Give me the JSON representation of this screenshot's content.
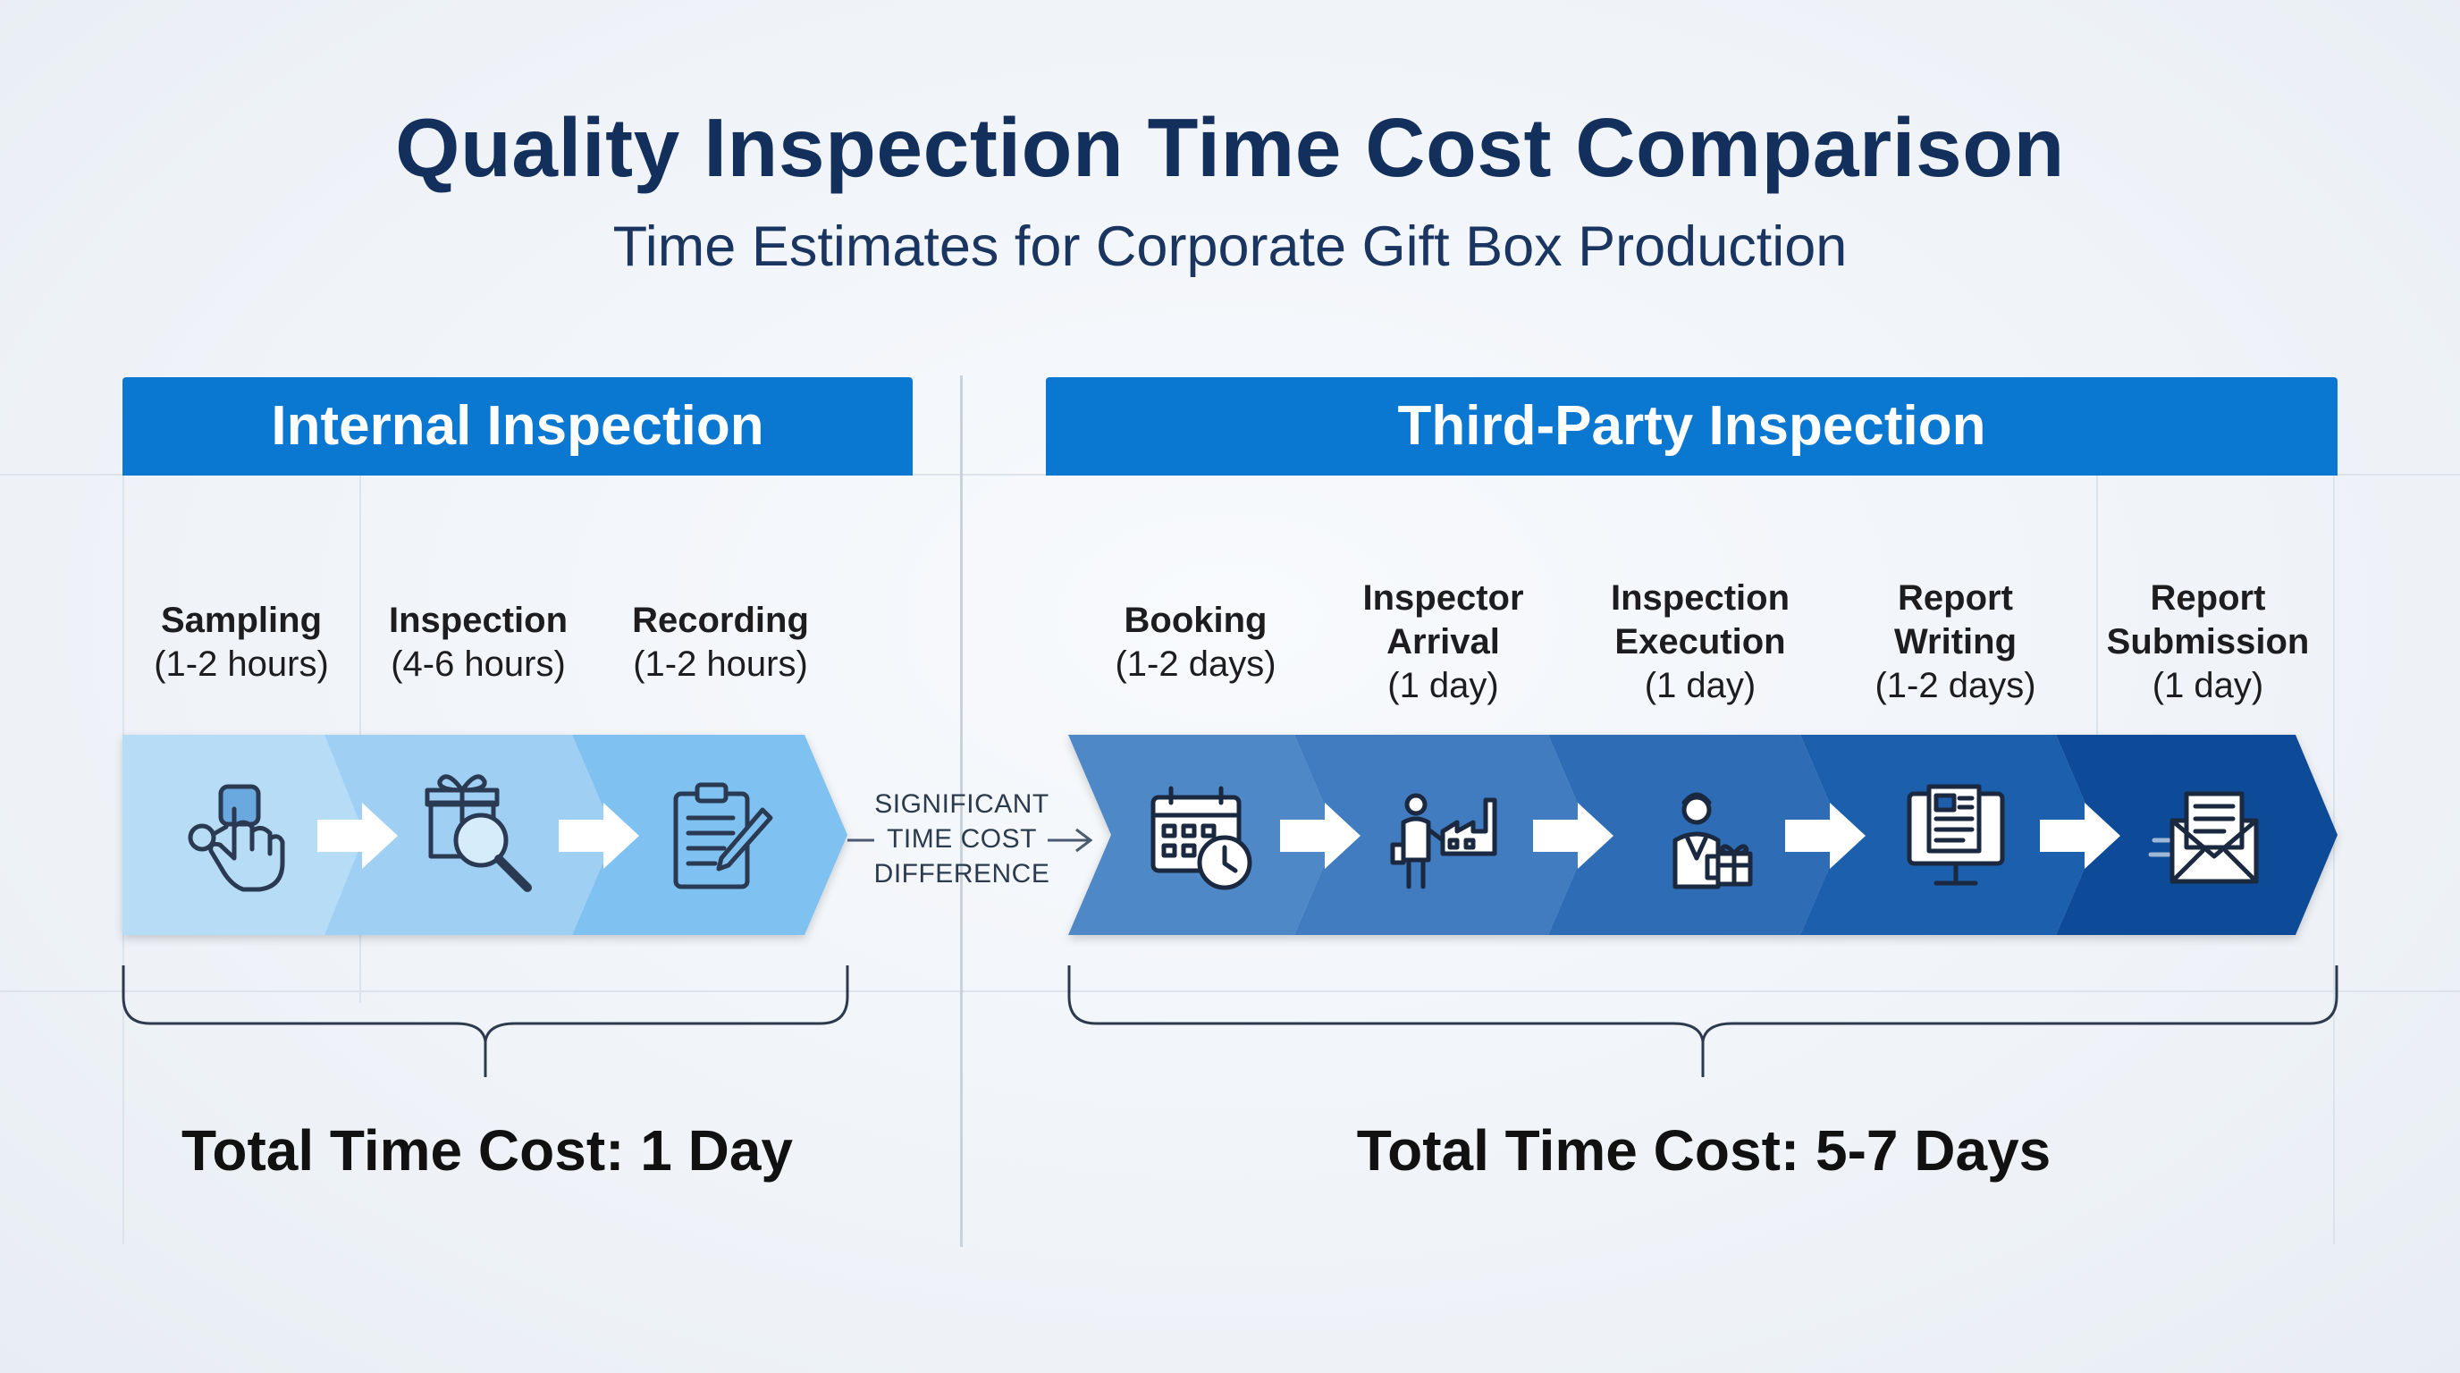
{
  "header": {
    "title": "Quality Inspection Time Cost Comparison",
    "subtitle": "Time Estimates for Corporate Gift Box Production"
  },
  "internal": {
    "heading": "Internal Inspection",
    "steps": [
      {
        "name": "Sampling",
        "duration": "(1-2 hours)",
        "icon": "hand-pointer-icon",
        "color": "#b6dcf6"
      },
      {
        "name": "Inspection",
        "duration": "(4-6 hours)",
        "icon": "gift-magnifier-icon",
        "color": "#9fd0f4"
      },
      {
        "name": "Recording",
        "duration": "(1-2 hours)",
        "icon": "clipboard-pen-icon",
        "color": "#7fc1f0"
      }
    ],
    "total": "Total Time Cost: 1 Day"
  },
  "middle": {
    "lines": [
      "SIGNIFICANT",
      "TIME COST",
      "DIFFERENCE"
    ]
  },
  "third_party": {
    "heading": "Third-Party Inspection",
    "steps": [
      {
        "name_lines": [
          "Booking"
        ],
        "duration": "(1-2 days)",
        "icon": "calendar-clock-icon",
        "color": "#4f88c6"
      },
      {
        "name_lines": [
          "Inspector",
          "Arrival"
        ],
        "duration": "(1 day)",
        "icon": "inspector-factory-icon",
        "color": "#3f7bbf"
      },
      {
        "name_lines": [
          "Inspection",
          "Execution"
        ],
        "duration": "(1 day)",
        "icon": "inspector-gifts-icon",
        "color": "#2d6db6"
      },
      {
        "name_lines": [
          "Report",
          "Writing"
        ],
        "duration": "(1-2 days)",
        "icon": "monitor-report-icon",
        "color": "#1e5eac"
      },
      {
        "name_lines": [
          "Report",
          "Submission"
        ],
        "duration": "(1 day)",
        "icon": "envelope-letter-icon",
        "color": "#0d4b99"
      }
    ],
    "total": "Total Time Cost: 5-7 Days"
  }
}
